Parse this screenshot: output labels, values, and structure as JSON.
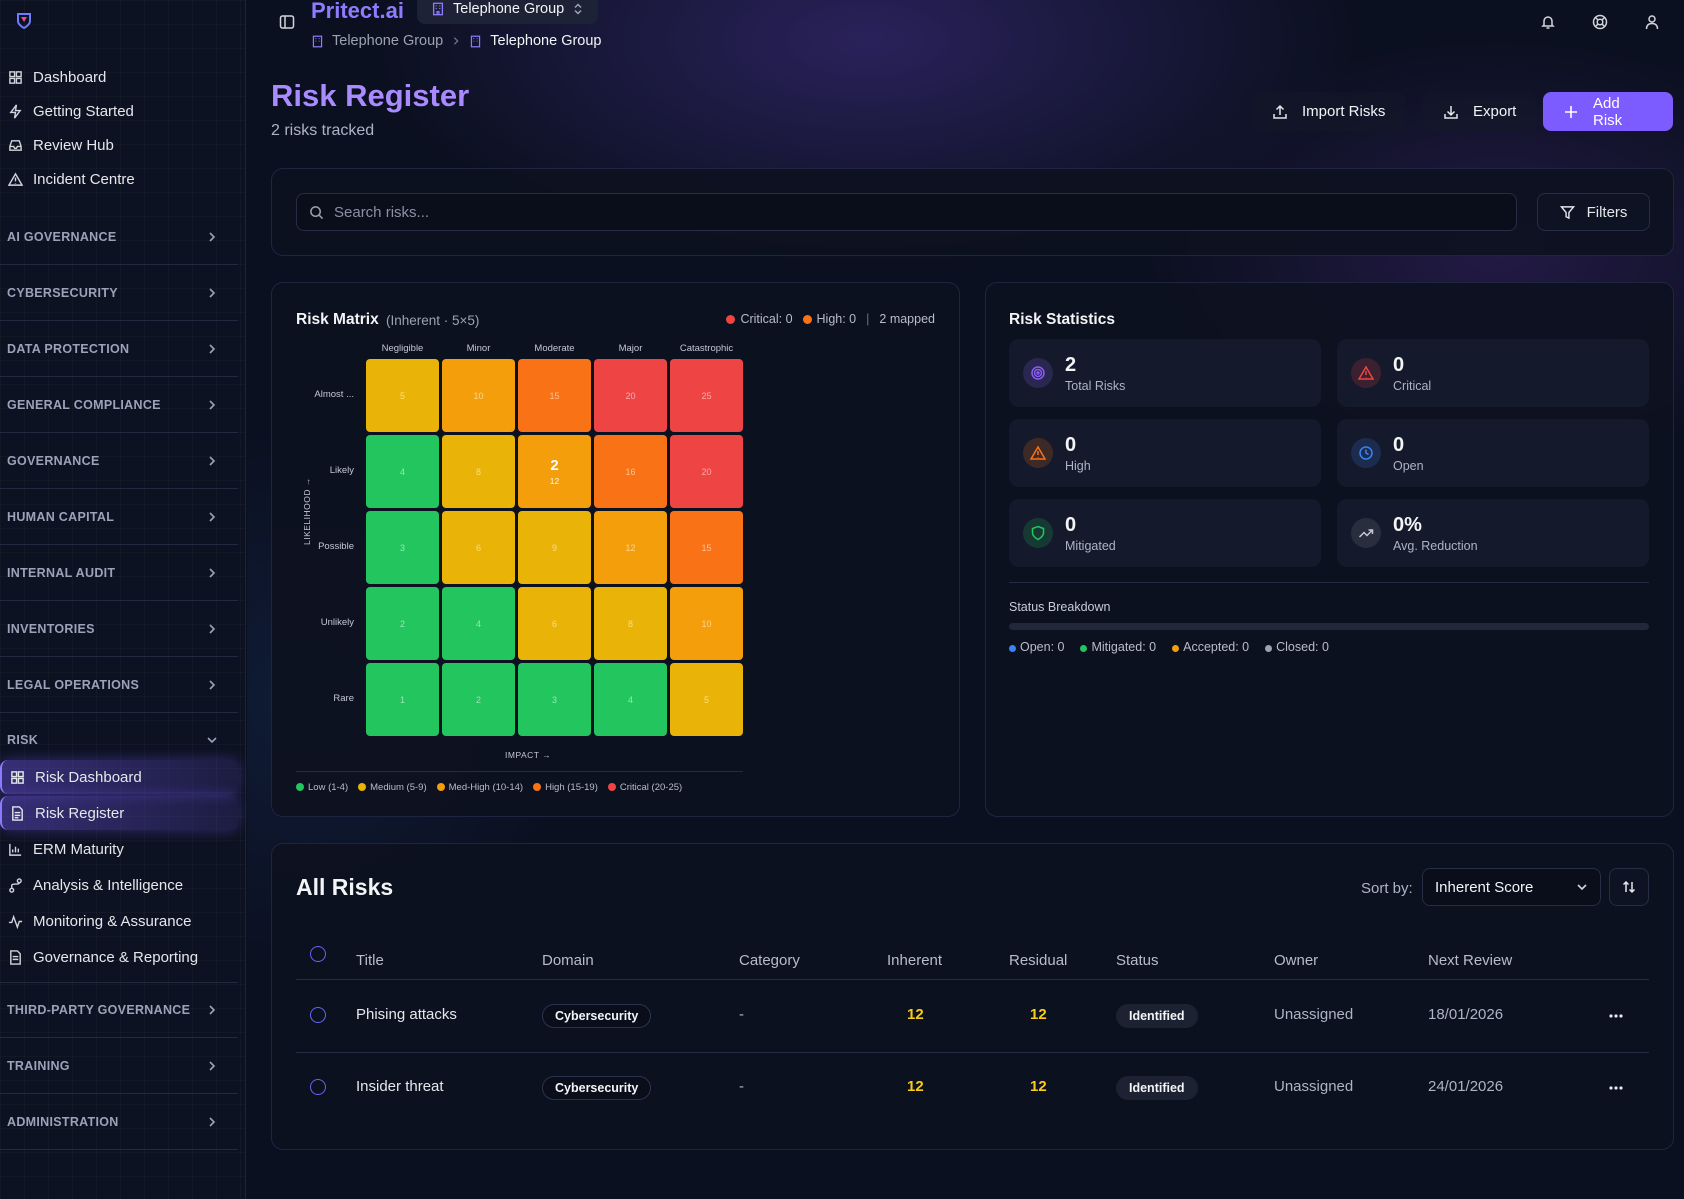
{
  "app": {
    "brand": "Pritect.ai",
    "org": "Telephone Group"
  },
  "breadcrumb": [
    "Telephone Group",
    "Telephone Group"
  ],
  "sidebar": {
    "top_items": [
      {
        "label": "Dashboard",
        "icon": "grid-icon"
      },
      {
        "label": "Getting Started",
        "icon": "bolt-icon"
      },
      {
        "label": "Review Hub",
        "icon": "inbox-icon"
      },
      {
        "label": "Incident Centre",
        "icon": "warning-icon"
      }
    ],
    "sections": [
      "AI GOVERNANCE",
      "CYBERSECURITY",
      "DATA PROTECTION",
      "GENERAL COMPLIANCE",
      "GOVERNANCE",
      "HUMAN CAPITAL",
      "INTERNAL AUDIT",
      "INVENTORIES",
      "LEGAL OPERATIONS"
    ],
    "risk_section": "RISK",
    "risk_items": [
      {
        "label": "Risk Dashboard",
        "icon": "grid-icon"
      },
      {
        "label": "Risk Register",
        "icon": "document-icon"
      },
      {
        "label": "ERM Maturity",
        "icon": "bar-chart-icon"
      },
      {
        "label": "Analysis & Intelligence",
        "icon": "branch-icon"
      },
      {
        "label": "Monitoring & Assurance",
        "icon": "pulse-icon"
      },
      {
        "label": "Governance & Reporting",
        "icon": "document-icon"
      }
    ],
    "bottom_sections": [
      "THIRD-PARTY GOVERNANCE",
      "TRAINING",
      "ADMINISTRATION"
    ]
  },
  "page": {
    "title": "Risk Register",
    "subtitle": "2 risks tracked",
    "import_label": "Import Risks",
    "export_label": "Export",
    "add_label": "Add Risk"
  },
  "search": {
    "placeholder": "Search risks...",
    "filters_label": "Filters"
  },
  "matrix": {
    "title": "Risk Matrix",
    "subtitle": "(Inherent · 5×5)",
    "critical_count": "Critical: 0",
    "high_count": "High: 0",
    "mapped": "2 mapped",
    "columns": [
      "Negligible",
      "Minor",
      "Moderate",
      "Major",
      "Catastrophic"
    ],
    "rows": [
      "Almost ...",
      "Likely",
      "Possible",
      "Unlikely",
      "Rare"
    ],
    "scores": [
      [
        5,
        10,
        15,
        20,
        25
      ],
      [
        4,
        8,
        12,
        16,
        20
      ],
      [
        3,
        6,
        9,
        12,
        15
      ],
      [
        2,
        4,
        6,
        8,
        10
      ],
      [
        1,
        2,
        3,
        4,
        5
      ]
    ],
    "mapped_cell": {
      "row": 1,
      "col": 2,
      "count": "2",
      "score": "12"
    },
    "y_axis": "LIKELIHOOD →",
    "x_axis": "IMPACT →",
    "legend": [
      {
        "label": "Low (1-4)",
        "color": "#22c55e"
      },
      {
        "label": "Medium (5-9)",
        "color": "#eab308"
      },
      {
        "label": "Med-High (10-14)",
        "color": "#f59e0b"
      },
      {
        "label": "High (15-19)",
        "color": "#f97316"
      },
      {
        "label": "Critical (20-25)",
        "color": "#ef4444"
      }
    ]
  },
  "stats": {
    "title": "Risk Statistics",
    "cards": [
      {
        "value": "2",
        "label": "Total Risks",
        "icon": "target-icon",
        "color": "#8b5cf6"
      },
      {
        "value": "0",
        "label": "Critical",
        "icon": "alert-triangle-icon",
        "color": "#ef4444"
      },
      {
        "value": "0",
        "label": "High",
        "icon": "alert-triangle-icon",
        "color": "#f97316"
      },
      {
        "value": "0",
        "label": "Open",
        "icon": "clock-icon",
        "color": "#3b82f6"
      },
      {
        "value": "0",
        "label": "Mitigated",
        "icon": "shield-icon",
        "color": "#22c55e"
      },
      {
        "value": "0%",
        "label": "Avg. Reduction",
        "icon": "trending-up-icon",
        "color": "#9ca3af"
      }
    ],
    "breakdown_title": "Status Breakdown",
    "breakdown": [
      {
        "label": "Open: 0",
        "color": "#3b82f6"
      },
      {
        "label": "Mitigated: 0",
        "color": "#22c55e"
      },
      {
        "label": "Accepted: 0",
        "color": "#f59e0b"
      },
      {
        "label": "Closed: 0",
        "color": "#9ca3af"
      }
    ]
  },
  "table": {
    "title": "All Risks",
    "sort_label": "Sort by:",
    "sort_value": "Inherent Score",
    "columns": [
      "Title",
      "Domain",
      "Category",
      "Inherent",
      "Residual",
      "Status",
      "Owner",
      "Next Review"
    ],
    "rows": [
      {
        "title": "Phising attacks",
        "domain": "Cybersecurity",
        "category": "-",
        "inherent": "12",
        "residual": "12",
        "status": "Identified",
        "owner": "Unassigned",
        "next_review": "18/01/2026"
      },
      {
        "title": "Insider threat",
        "domain": "Cybersecurity",
        "category": "-",
        "inherent": "12",
        "residual": "12",
        "status": "Identified",
        "owner": "Unassigned",
        "next_review": "24/01/2026"
      }
    ]
  }
}
